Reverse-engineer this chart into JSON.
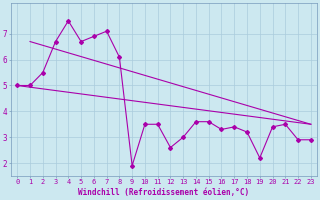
{
  "xlabel": "Windchill (Refroidissement éolien,°C)",
  "x": [
    0,
    1,
    2,
    3,
    4,
    5,
    6,
    7,
    8,
    9,
    10,
    11,
    12,
    13,
    14,
    15,
    16,
    17,
    18,
    19,
    20,
    21,
    22,
    23
  ],
  "y_main": [
    5.0,
    5.0,
    5.5,
    6.7,
    7.5,
    6.7,
    6.9,
    7.1,
    6.1,
    1.9,
    3.5,
    3.5,
    2.6,
    3.0,
    3.6,
    3.6,
    3.3,
    3.4,
    3.2,
    2.2,
    3.4,
    3.5,
    2.9,
    2.9
  ],
  "y_trend1_start": 6.7,
  "y_trend1_end": 3.5,
  "x_trend1_start": 1,
  "x_trend1_end": 23,
  "y_trend2_start": 5.0,
  "y_trend2_end": 3.5,
  "x_trend2_start": 0,
  "x_trend2_end": 23,
  "line_color": "#aa00aa",
  "bg_color": "#cce8f0",
  "grid_color": "#aaccdd",
  "ylim": [
    1.5,
    8.2
  ],
  "xlim": [
    -0.5,
    23.5
  ],
  "yticks": [
    2,
    3,
    4,
    5,
    6,
    7
  ],
  "xticks": [
    0,
    1,
    2,
    3,
    4,
    5,
    6,
    7,
    8,
    9,
    10,
    11,
    12,
    13,
    14,
    15,
    16,
    17,
    18,
    19,
    20,
    21,
    22,
    23
  ],
  "tick_fontsize": 5.0,
  "xlabel_fontsize": 5.5
}
